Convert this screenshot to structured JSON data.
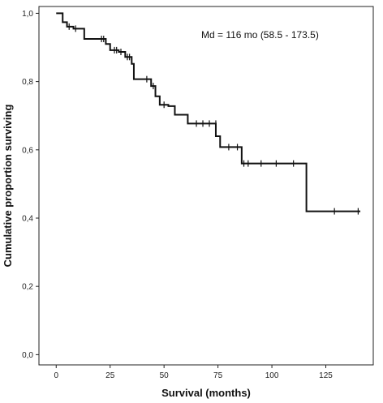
{
  "chart_data": {
    "type": "line",
    "subtype": "kaplan-meier-step",
    "title": "",
    "xlabel": "Survival (months)",
    "ylabel": "Cumulative proportion surviving",
    "annotation": "Md = 116 mo (58.5 - 173.5)",
    "xlim": [
      -8,
      147
    ],
    "ylim": [
      -0.03,
      1.02
    ],
    "x_ticks": [
      0,
      25,
      50,
      75,
      100,
      125
    ],
    "x_tick_labels": [
      "0",
      "25",
      "50",
      "75",
      "100",
      "125"
    ],
    "y_ticks": [
      0.0,
      0.2,
      0.4,
      0.6,
      0.8,
      1.0
    ],
    "y_tick_labels": [
      "0,0",
      "0,2",
      "0,4",
      "0,6",
      "0,8",
      "1,0"
    ],
    "grid": false,
    "series": [
      {
        "x": [
          0,
          3,
          5,
          8,
          13,
          20,
          23,
          25,
          29,
          32,
          35,
          36,
          44,
          46,
          48,
          52,
          55,
          61,
          74,
          76,
          86,
          116,
          141
        ],
        "y": [
          1.0,
          0.974,
          0.961,
          0.955,
          0.925,
          0.925,
          0.91,
          0.892,
          0.887,
          0.872,
          0.852,
          0.807,
          0.787,
          0.757,
          0.732,
          0.728,
          0.703,
          0.677,
          0.64,
          0.608,
          0.56,
          0.42,
          0.42
        ],
        "censored_x": [
          6,
          9,
          21,
          22,
          27,
          28,
          30,
          33,
          34,
          42,
          45,
          50,
          65,
          68,
          71,
          74,
          80,
          84,
          87,
          89,
          95,
          102,
          110,
          129,
          140
        ],
        "censored_y": [
          0.961,
          0.955,
          0.925,
          0.925,
          0.892,
          0.892,
          0.887,
          0.872,
          0.872,
          0.807,
          0.787,
          0.732,
          0.677,
          0.677,
          0.677,
          0.677,
          0.608,
          0.608,
          0.56,
          0.56,
          0.56,
          0.56,
          0.56,
          0.42,
          0.42
        ]
      }
    ]
  }
}
